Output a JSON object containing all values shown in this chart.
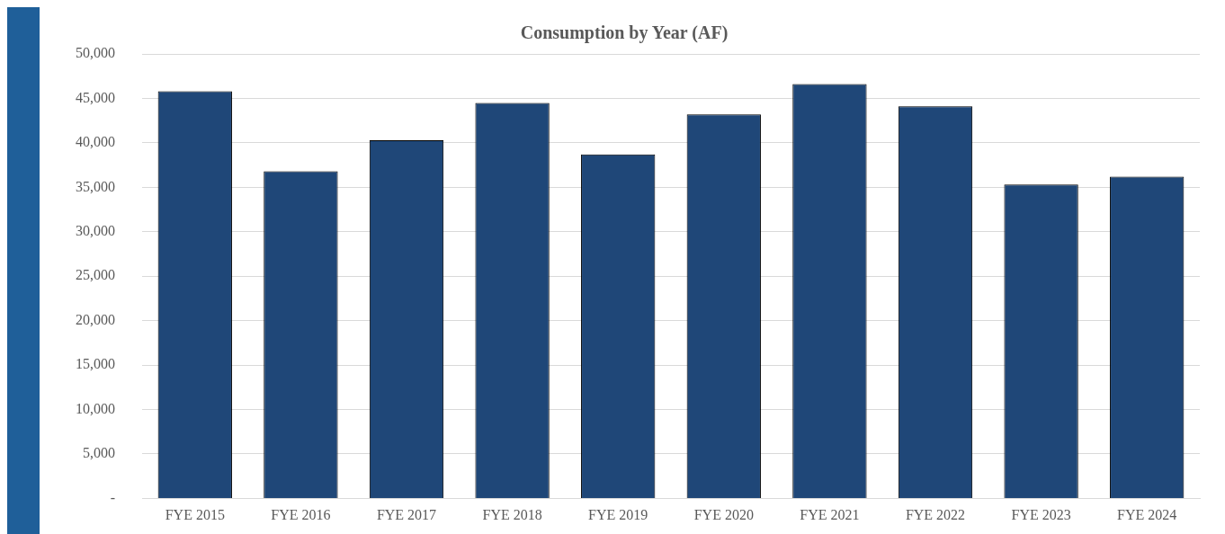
{
  "chart_data": {
    "type": "bar",
    "title": "Consumption by Year (AF)",
    "categories": [
      "FYE 2015",
      "FYE 2016",
      "FYE 2017",
      "FYE 2018",
      "FYE 2019",
      "FYE 2020",
      "FYE 2021",
      "FYE 2022",
      "FYE 2023",
      "FYE 2024"
    ],
    "series": [
      {
        "color": "#1f4778",
        "values": [
          45800,
          36800,
          40300,
          44500,
          38700,
          43200,
          46600,
          44100,
          35300,
          36200
        ]
      }
    ],
    "ylim": [
      0,
      50000
    ],
    "yticks": [
      {
        "value": 0,
        "label": "-"
      },
      {
        "value": 5000,
        "label": "5,000"
      },
      {
        "value": 10000,
        "label": "10,000"
      },
      {
        "value": 15000,
        "label": "15,000"
      },
      {
        "value": 20000,
        "label": "20,000"
      },
      {
        "value": 25000,
        "label": "25,000"
      },
      {
        "value": 30000,
        "label": "30,000"
      },
      {
        "value": 35000,
        "label": "35,000"
      },
      {
        "value": 40000,
        "label": "40,000"
      },
      {
        "value": 45000,
        "label": "45,000"
      },
      {
        "value": 50000,
        "label": "50,000"
      }
    ],
    "grid": "y",
    "legend": false
  }
}
